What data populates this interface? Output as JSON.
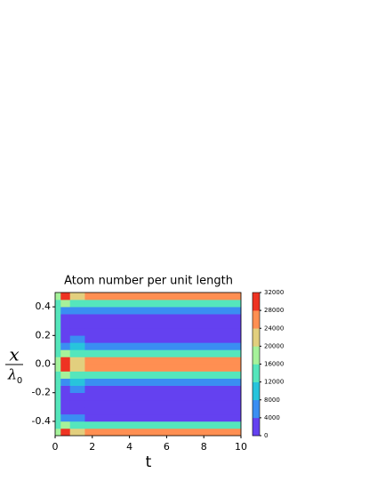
{
  "chart_data": {
    "type": "contourf",
    "title": "Atom number per unit length",
    "xlabel": "t",
    "ylabel": {
      "numerator": "x",
      "denominator": "λ",
      "subscript": "0"
    },
    "xlim": [
      0,
      10
    ],
    "xticks": [
      0,
      2,
      4,
      6,
      8,
      10
    ],
    "ylim": [
      -0.5,
      0.5
    ],
    "yticks": [
      -0.4,
      -0.2,
      0.0,
      0.2,
      0.4
    ],
    "levels": [
      0,
      4000,
      8000,
      12000,
      16000,
      20000,
      24000,
      28000,
      32000
    ],
    "colors": [
      "#6441f0",
      "#3a8ef2",
      "#27c4dc",
      "#55e6bc",
      "#a6f29a",
      "#e2cf7e",
      "#ff8f52",
      "#ee3322"
    ],
    "t_edges": [
      0,
      0.3,
      0.8,
      1.6,
      10
    ],
    "y_edges": [
      -0.5,
      -0.45,
      -0.4,
      -0.35,
      -0.3,
      -0.25,
      -0.2,
      -0.15,
      -0.1,
      -0.05,
      0,
      0.05,
      0.1,
      0.15,
      0.2,
      0.25,
      0.3,
      0.35,
      0.4,
      0.45,
      0.5
    ],
    "z": [
      [
        18000,
        30000,
        22000,
        26000
      ],
      [
        14000,
        18000,
        14000,
        14000
      ],
      [
        14000,
        6000,
        6000,
        2000
      ],
      [
        14000,
        2000,
        2000,
        2000
      ],
      [
        14000,
        2000,
        2000,
        2000
      ],
      [
        14000,
        2000,
        2000,
        2000
      ],
      [
        14000,
        2000,
        6000,
        2000
      ],
      [
        14000,
        6000,
        10000,
        6000
      ],
      [
        14000,
        18000,
        14000,
        14000
      ],
      [
        18000,
        30000,
        22000,
        26000
      ],
      [
        18000,
        30000,
        22000,
        26000
      ],
      [
        14000,
        18000,
        14000,
        14000
      ],
      [
        14000,
        6000,
        10000,
        6000
      ],
      [
        14000,
        2000,
        6000,
        2000
      ],
      [
        14000,
        2000,
        2000,
        2000
      ],
      [
        14000,
        2000,
        2000,
        2000
      ],
      [
        14000,
        2000,
        2000,
        2000
      ],
      [
        14000,
        6000,
        6000,
        6000
      ],
      [
        14000,
        18000,
        14000,
        14000
      ],
      [
        18000,
        30000,
        22000,
        26000
      ]
    ]
  }
}
